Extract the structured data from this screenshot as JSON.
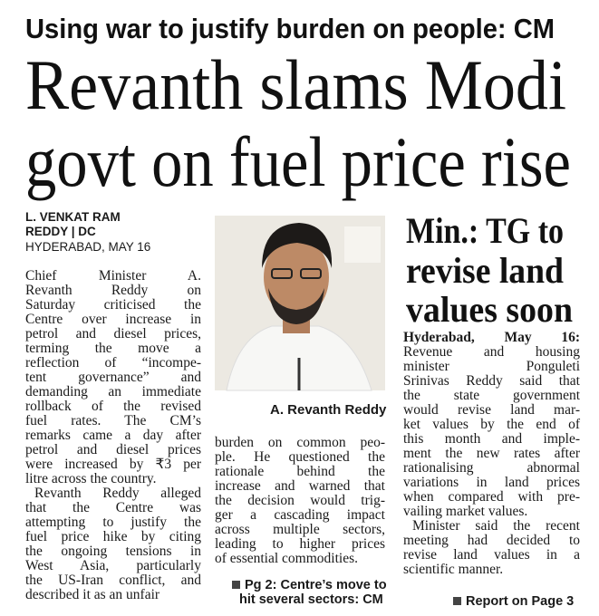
{
  "kicker": "Using war to justify burden on people: CM",
  "headline": [
    "Revanth slams Modi",
    "govt on fuel price rise"
  ],
  "byline": [
    "L. VENKAT RAM",
    "REDDY | DC",
    "HYDERABAD, MAY 16"
  ],
  "main_story": {
    "left": [
      [
        "Chief Minister A.",
        "Revanth Reddy on",
        "Saturday criticised the",
        "Centre over increase in",
        "petrol and diesel prices,",
        "terming the move a",
        "reflection of “incompe-",
        "tent governance” and",
        "demanding an immediate",
        "rollback of the revised",
        "fuel rates. The CM’s",
        "remarks came a day after",
        "petrol and diesel prices",
        "were increased by ₹3 per",
        "litre across the country."
      ],
      [
        "Revanth Reddy alleged",
        "that the Centre was",
        "attempting to justify the",
        "fuel price hike by citing",
        "the ongoing tensions in",
        "West Asia, particularly",
        "the US-Iran conflict, and",
        "described it as an unfair"
      ]
    ],
    "middle": [
      [
        "burden on common peo-",
        "ple. He questioned the",
        "rationale behind the",
        "increase and warned that",
        "the decision would trig-",
        "ger a cascading impact",
        "across multiple sectors,",
        "leading to higher prices",
        "of essential commodities."
      ]
    ],
    "photo_caption": "A. Revanth Reddy",
    "jump": [
      "Pg 2: Centre’s move to",
      "hit several sectors: CM"
    ]
  },
  "side_story": {
    "headline": [
      "Min.: TG to",
      "revise land",
      "values soon"
    ],
    "dateline": "Hyderabad, May 16:",
    "paragraphs": [
      [
        "Revenue and housing",
        "minister Ponguleti",
        "Srinivas Reddy said that",
        "the state government",
        "would revise land mar-",
        "ket values by the end of",
        "this month and imple-",
        "ment the new rates after",
        "rationalising abnormal",
        "variations in land prices",
        "when compared with pre-",
        "vailing market values."
      ],
      [
        "Minister said the recent",
        "meeting had decided to",
        "revise land values in a",
        "scientific manner."
      ]
    ],
    "jump": "Report on Page 3"
  }
}
